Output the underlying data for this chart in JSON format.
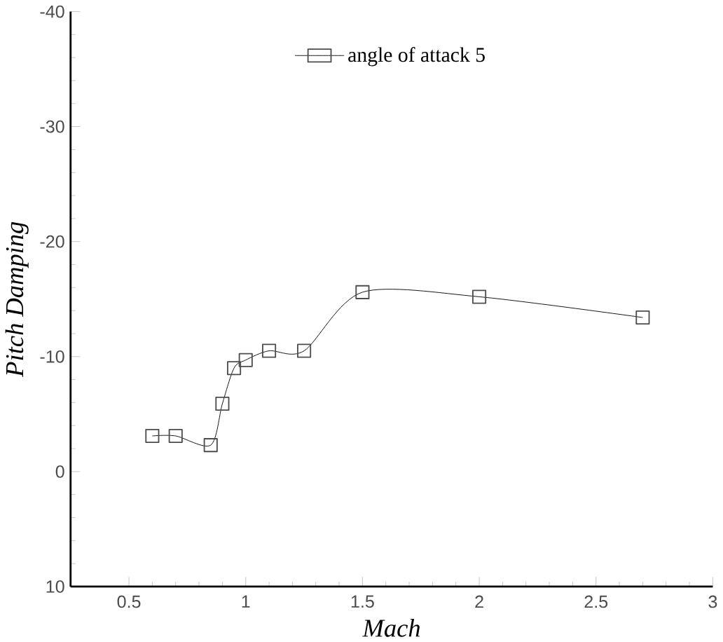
{
  "chart_data": {
    "type": "line",
    "xlabel": "Mach",
    "ylabel": "Pitch Damping",
    "series": [
      {
        "name": "angle of attack 5",
        "color": "#000000",
        "x": [
          0.6,
          0.7,
          0.85,
          0.9,
          0.95,
          1.0,
          1.1,
          1.25,
          1.5,
          2.0,
          2.7
        ],
        "values": [
          -3.1,
          -3.1,
          -2.3,
          -5.9,
          -9.0,
          -9.7,
          -10.5,
          -10.5,
          -15.6,
          -15.2,
          -13.4
        ]
      }
    ],
    "xlim": [
      0.25,
      3
    ],
    "xticks": [
      0.5,
      1,
      1.5,
      2,
      2.5,
      3
    ],
    "ylim": [
      10,
      -40
    ],
    "yticks": [
      10,
      0,
      -10,
      -20,
      -30,
      -40
    ],
    "marker": "square",
    "line_style": "solid",
    "legend": "top",
    "grid": false
  }
}
